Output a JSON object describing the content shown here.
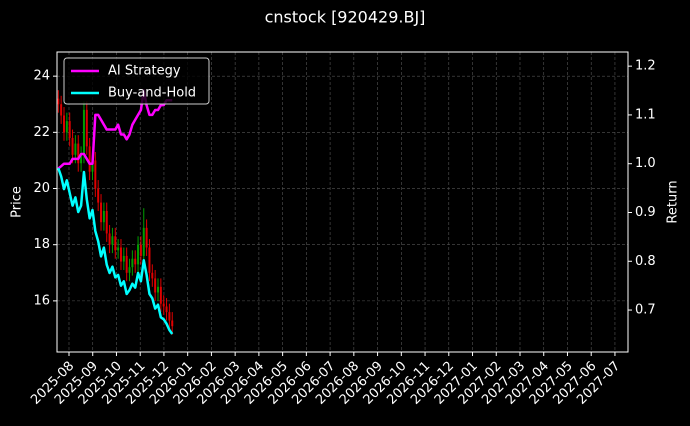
{
  "chart_data": {
    "type": "candlestick",
    "title": "cnstock [920429.BJ]",
    "y_label": "Price",
    "y2_label": "Return",
    "up_color": "#00a000",
    "down_color": "#e00000",
    "grid": true,
    "legend": "upper left",
    "xlim": [
      -0.505,
      23.55
    ],
    "xticks": [
      {
        "value": 0,
        "label": "2025-08"
      },
      {
        "value": 1,
        "label": "2025-09"
      },
      {
        "value": 2,
        "label": "2025-10"
      },
      {
        "value": 3,
        "label": "2025-11"
      },
      {
        "value": 4,
        "label": "2025-12"
      },
      {
        "value": 5,
        "label": "2026-01"
      },
      {
        "value": 6,
        "label": "2026-02"
      },
      {
        "value": 7,
        "label": "2026-03"
      },
      {
        "value": 8,
        "label": "2026-04"
      },
      {
        "value": 9,
        "label": "2026-05"
      },
      {
        "value": 10,
        "label": "2026-06"
      },
      {
        "value": 11,
        "label": "2026-07"
      },
      {
        "value": 12,
        "label": "2026-08"
      },
      {
        "value": 13,
        "label": "2026-09"
      },
      {
        "value": 14,
        "label": "2026-10"
      },
      {
        "value": 15,
        "label": "2026-11"
      },
      {
        "value": 16,
        "label": "2026-12"
      },
      {
        "value": 17,
        "label": "2027-01"
      },
      {
        "value": 18,
        "label": "2027-02"
      },
      {
        "value": 19,
        "label": "2027-03"
      },
      {
        "value": 20,
        "label": "2027-04"
      },
      {
        "value": 21,
        "label": "2027-05"
      },
      {
        "value": 22,
        "label": "2027-06"
      },
      {
        "value": 23,
        "label": "2027-07"
      }
    ],
    "ylim": [
      14.18,
      24.86
    ],
    "yticks": [
      16,
      18,
      20,
      22,
      24
    ],
    "y2lim": [
      0.614,
      1.229
    ],
    "y2ticks": [
      0.7,
      0.8,
      0.9,
      {
        "value": 1,
        "label": "1.0"
      },
      1.1,
      1.2
    ],
    "x": [
      -0.45,
      -0.33,
      -0.21,
      -0.09,
      0.03,
      0.15,
      0.27,
      0.39,
      0.51,
      0.63,
      0.75,
      0.87,
      0.99,
      1.11,
      1.23,
      1.35,
      1.47,
      1.59,
      1.71,
      1.83,
      1.95,
      2.07,
      2.19,
      2.31,
      2.43,
      2.55,
      2.67,
      2.79,
      2.91,
      3.03,
      3.15,
      3.27,
      3.39,
      3.51,
      3.63,
      3.75,
      3.87,
      3.99,
      4.11,
      4.23,
      4.35
    ],
    "open": [
      23.2,
      23.0,
      22.6,
      22.0,
      22.4,
      21.8,
      21.2,
      21.6,
      20.9,
      21.2,
      22.8,
      21.5,
      20.6,
      21.0,
      20.0,
      19.5,
      18.8,
      19.2,
      18.4,
      18.0,
      18.3,
      17.8,
      17.9,
      17.4,
      17.6,
      17.0,
      17.2,
      17.5,
      17.3,
      18.0,
      17.6,
      18.6,
      17.9,
      17.0,
      16.8,
      16.3,
      16.5,
      15.9,
      15.8,
      15.6,
      15.3
    ],
    "high": [
      23.5,
      23.3,
      22.9,
      22.7,
      22.7,
      22.1,
      21.9,
      21.9,
      21.5,
      23.1,
      23.1,
      21.8,
      21.3,
      21.3,
      20.3,
      19.8,
      19.5,
      19.5,
      18.7,
      18.6,
      18.6,
      18.2,
      18.2,
      17.9,
      17.9,
      17.5,
      17.8,
      17.8,
      18.3,
      18.3,
      19.3,
      18.9,
      18.2,
      17.3,
      17.1,
      16.8,
      16.8,
      16.2,
      16.1,
      15.9,
      15.6
    ],
    "low": [
      22.7,
      22.3,
      21.7,
      21.7,
      21.5,
      20.9,
      20.9,
      20.6,
      20.6,
      20.9,
      21.2,
      20.3,
      20.3,
      19.7,
      19.2,
      18.5,
      18.5,
      18.1,
      17.7,
      17.7,
      17.5,
      17.5,
      17.1,
      17.1,
      16.7,
      16.7,
      16.9,
      17.0,
      17.0,
      17.3,
      17.3,
      17.6,
      16.7,
      16.5,
      16.0,
      16.0,
      15.6,
      15.5,
      15.3,
      15.0,
      14.8
    ],
    "close": [
      23.0,
      22.6,
      22.0,
      22.4,
      21.8,
      21.2,
      21.6,
      20.9,
      21.2,
      22.8,
      21.5,
      20.6,
      21.0,
      20.0,
      19.5,
      18.8,
      19.2,
      18.4,
      18.0,
      18.3,
      17.8,
      17.9,
      17.4,
      17.6,
      17.0,
      17.2,
      17.5,
      17.3,
      18.0,
      17.6,
      18.6,
      17.9,
      17.0,
      16.8,
      16.3,
      16.5,
      15.9,
      15.8,
      15.6,
      15.3,
      15.1
    ],
    "series": [
      {
        "name": "AI Strategy",
        "color": "#ff00ff",
        "axis": "y2",
        "values": [
          0.99,
          0.995,
          1.0,
          1.0,
          1.0,
          1.01,
          1.01,
          1.01,
          1.02,
          1.02,
          1.01,
          1.0,
          1.0,
          1.1,
          1.1,
          1.09,
          1.08,
          1.07,
          1.07,
          1.07,
          1.07,
          1.08,
          1.06,
          1.06,
          1.05,
          1.06,
          1.08,
          1.09,
          1.1,
          1.11,
          1.15,
          1.12,
          1.1,
          1.1,
          1.11,
          1.11,
          1.12,
          1.12,
          1.13,
          1.13,
          1.13
        ]
      },
      {
        "name": "Buy-and-Hold",
        "color": "#00ffff",
        "axis": "y2",
        "values": [
          0.991,
          0.974,
          0.948,
          0.966,
          0.94,
          0.914,
          0.931,
          0.901,
          0.914,
          0.983,
          0.927,
          0.888,
          0.905,
          0.862,
          0.841,
          0.81,
          0.828,
          0.793,
          0.776,
          0.789,
          0.767,
          0.772,
          0.75,
          0.759,
          0.733,
          0.741,
          0.754,
          0.746,
          0.776,
          0.759,
          0.802,
          0.772,
          0.733,
          0.724,
          0.703,
          0.711,
          0.685,
          0.681,
          0.672,
          0.659,
          0.651
        ]
      }
    ]
  }
}
